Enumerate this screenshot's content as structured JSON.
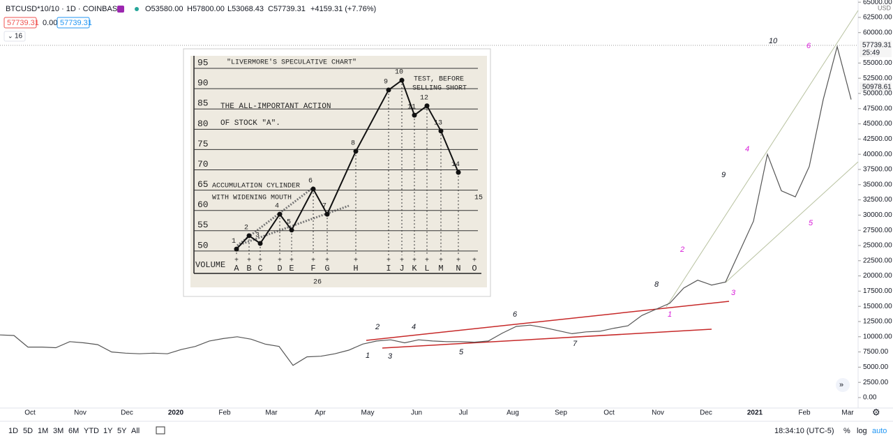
{
  "header": {
    "symbol": "BTCUSD*10/10 · 1D · COINBASE",
    "open": "O53580.00",
    "high": "H57800.00",
    "low": "L53068.43",
    "close": "C57739.31",
    "change": "+4159.31 (+7.76%)",
    "bid": "57739.31",
    "spread": "0.00",
    "ask": "57739.31",
    "indicator": "16"
  },
  "axis": {
    "currency": "USD",
    "last_price": "57739.31",
    "countdown": "25:49",
    "other_price": "50978.61"
  },
  "chart_data": {
    "type": "line",
    "color": "#555555",
    "values": [
      10300,
      10200,
      8300,
      8300,
      8200,
      9200,
      9000,
      8700,
      7500,
      7300,
      7200,
      7300,
      7200,
      7900,
      8400,
      9300,
      9700,
      10000,
      9600,
      8800,
      8400,
      5300,
      6700,
      6800,
      7200,
      7800,
      8800,
      9300,
      9500,
      9000,
      9500,
      9300,
      9200,
      9200,
      9100,
      9300,
      10600,
      11700,
      11900,
      11500,
      11000,
      10500,
      10800,
      10900,
      11400,
      11800,
      13500,
      14500,
      15500,
      18000,
      19300,
      18500,
      19000,
      24000,
      29000,
      40000,
      34000,
      33000,
      38000,
      49000,
      57700,
      49000
    ],
    "ylim": [
      -1720,
      65360
    ],
    "yticks": [
      {
        "value": 0,
        "label": "0.00"
      },
      {
        "value": 2500,
        "label": "2500.00"
      },
      {
        "value": 5000,
        "label": "5000.00"
      },
      {
        "value": 7500,
        "label": "7500.00"
      },
      {
        "value": 10000,
        "label": "10000.00"
      },
      {
        "value": 12500,
        "label": "12500.00"
      },
      {
        "value": 15000,
        "label": "15000.00"
      },
      {
        "value": 17500,
        "label": "17500.00"
      },
      {
        "value": 20000,
        "label": "20000.00"
      },
      {
        "value": 22500,
        "label": "22500.00"
      },
      {
        "value": 25000,
        "label": "25000.00"
      },
      {
        "value": 27500,
        "label": "27500.00"
      },
      {
        "value": 30000,
        "label": "30000.00"
      },
      {
        "value": 32500,
        "label": "32500.00"
      },
      {
        "value": 35000,
        "label": "35000.00"
      },
      {
        "value": 37500,
        "label": "37500.00"
      },
      {
        "value": 40000,
        "label": "40000.00"
      },
      {
        "value": 42500,
        "label": "42500.00"
      },
      {
        "value": 45000,
        "label": "45000.00"
      },
      {
        "value": 47500,
        "label": "47500.00"
      },
      {
        "value": 50000,
        "label": "50000.00"
      },
      {
        "value": 52500,
        "label": "52500.00"
      },
      {
        "value": 55000,
        "label": "55000.00"
      },
      {
        "value": 60000,
        "label": "60000.00"
      },
      {
        "value": 62500,
        "label": "62500.00"
      },
      {
        "value": 65000,
        "label": "65000.00"
      }
    ],
    "time_labels": [
      "Oct",
      "Nov",
      "Dec",
      "2020",
      "Feb",
      "Mar",
      "Apr",
      "May",
      "Jun",
      "Jul",
      "Aug",
      "Sep",
      "Oct",
      "Nov",
      "Dec",
      "2021",
      "Feb",
      "Mar"
    ],
    "wave_labels": [
      "1",
      "2",
      "3",
      "4",
      "5",
      "6",
      "7",
      "8",
      "9",
      "10"
    ],
    "magenta_labels": [
      "1",
      "2",
      "3",
      "4",
      "5",
      "6"
    ]
  },
  "inset": {
    "title": "\"LIVERMORE'S SPECULATIVE CHART\"",
    "note1": "TEST, BEFORE",
    "note2": "SELLING SHORT",
    "caption1": "THE ALL-IMPORTANT ACTION",
    "caption2": "OF STOCK \"A\".",
    "cyl1": "ACCUMULATION CYLINDER",
    "cyl2": "WITH WIDENING MOUTH",
    "volume": "VOLUME",
    "page": "26",
    "last": "15",
    "ylim": [
      45,
      97
    ],
    "yticks": [
      95,
      90,
      85,
      80,
      75,
      70,
      65,
      60,
      55,
      50
    ],
    "columns": [
      "A",
      "B",
      "C",
      "D",
      "E",
      "F",
      "G",
      "H",
      "I",
      "J",
      "K",
      "L",
      "M",
      "N",
      "O"
    ],
    "points": [
      {
        "label": "1",
        "value": 49.1
      },
      {
        "label": "2",
        "value": 52.4
      },
      {
        "label": "3",
        "value": 50.5
      },
      {
        "label": "4",
        "value": 57.7
      },
      {
        "label": "5",
        "value": 53.8
      },
      {
        "label": "6",
        "value": 63.9
      },
      {
        "label": "7",
        "value": 57.7
      },
      {
        "label": "8",
        "value": 73.2
      },
      {
        "label": "9",
        "value": 88.3
      },
      {
        "label": "10",
        "value": 90.7
      },
      {
        "label": "11",
        "value": 82.1
      },
      {
        "label": "12",
        "value": 84.4
      },
      {
        "label": "13",
        "value": 78.2
      },
      {
        "label": "14",
        "value": 68.0
      }
    ]
  },
  "toolbar": {
    "ranges": [
      "1D",
      "5D",
      "1M",
      "3M",
      "6M",
      "YTD",
      "1Y",
      "5Y",
      "All"
    ],
    "clock": "18:34:10 (UTC-5)",
    "percent": "%",
    "log": "log",
    "auto": "auto"
  }
}
